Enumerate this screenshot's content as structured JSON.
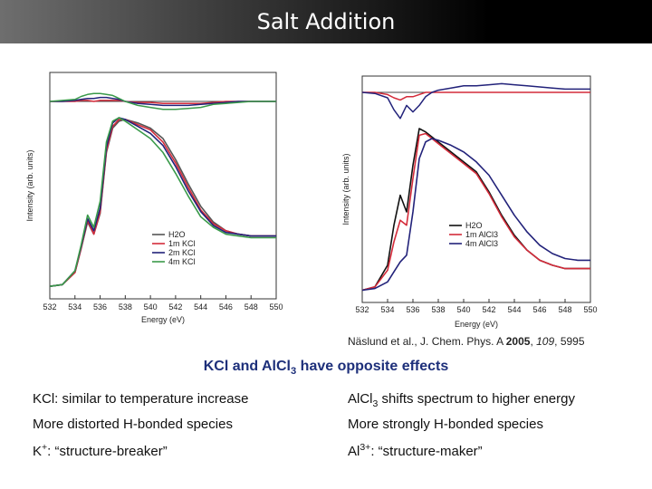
{
  "slide": {
    "title": "Salt Addition"
  },
  "citation": {
    "authors": "Näslund et al., J. Chem. Phys. A ",
    "year": "2005",
    "volume": "109",
    "page": "5995"
  },
  "headline": {
    "pre": "KCl and AlCl",
    "sub": "3",
    "post": " have opposite effects"
  },
  "comparison": {
    "left": [
      {
        "text": "KCl: similar to temperature increase"
      },
      {
        "text": "More distorted H-bonded species"
      },
      {
        "pre": "K",
        "sup": "+",
        "post": ": “structure-breaker”"
      }
    ],
    "right": [
      {
        "pre": "AlCl",
        "sub": "3",
        "post": " shifts spectrum to higher energy"
      },
      {
        "text": "More strongly H-bonded species"
      },
      {
        "pre": "Al",
        "sup": "3+",
        "post": ": “structure-maker”"
      }
    ]
  },
  "chart_data": [
    {
      "type": "line",
      "title": "",
      "xlabel": "Energy (eV)",
      "ylabel": "Intensity (arb. units)",
      "xlim": [
        532,
        550
      ],
      "xticks": [
        "532",
        "534",
        "536",
        "538",
        "540",
        "542",
        "544",
        "546",
        "548",
        "550"
      ],
      "legend": [
        "H2O",
        "1m KCl",
        "2m KCl",
        "4m KCl"
      ],
      "legend_position": "bottom-right",
      "colors": [
        "#555555",
        "#d42b3a",
        "#22227a",
        "#3a9a4a"
      ],
      "x": [
        532,
        533,
        534,
        534.5,
        535,
        535.5,
        536,
        536.5,
        537,
        537.5,
        538,
        539,
        540,
        541,
        542,
        543,
        544,
        545,
        546,
        547,
        548,
        549,
        550
      ],
      "series": [
        {
          "name": "H2O",
          "values": [
            0.03,
            0.04,
            0.11,
            0.25,
            0.4,
            0.33,
            0.45,
            0.8,
            0.94,
            0.98,
            0.99,
            0.97,
            0.94,
            0.88,
            0.76,
            0.62,
            0.49,
            0.4,
            0.35,
            0.33,
            0.32,
            0.32,
            0.32
          ]
        },
        {
          "name": "1m KCl",
          "values": [
            0.03,
            0.04,
            0.11,
            0.25,
            0.41,
            0.33,
            0.46,
            0.81,
            0.95,
            0.99,
            0.99,
            0.96,
            0.93,
            0.86,
            0.74,
            0.6,
            0.47,
            0.39,
            0.35,
            0.33,
            0.32,
            0.32,
            0.32
          ]
        },
        {
          "name": "2m KCl",
          "values": [
            0.03,
            0.04,
            0.12,
            0.26,
            0.42,
            0.35,
            0.48,
            0.83,
            0.97,
            1.0,
            0.99,
            0.95,
            0.91,
            0.84,
            0.72,
            0.58,
            0.46,
            0.38,
            0.34,
            0.33,
            0.32,
            0.32,
            0.32
          ]
        },
        {
          "name": "4m KCl",
          "values": [
            0.03,
            0.04,
            0.12,
            0.27,
            0.44,
            0.37,
            0.52,
            0.86,
            0.98,
            1.0,
            0.98,
            0.93,
            0.88,
            0.8,
            0.68,
            0.55,
            0.43,
            0.37,
            0.33,
            0.32,
            0.31,
            0.31,
            0.31
          ]
        }
      ],
      "difference_series": [
        {
          "name": "1m KCl",
          "values": [
            0.0,
            0.0,
            0.0,
            0.01,
            0.01,
            0.0,
            0.01,
            0.01,
            0.01,
            0.01,
            0.0,
            -0.01,
            -0.01,
            -0.02,
            -0.02,
            -0.02,
            -0.02,
            -0.01,
            0.0,
            0.0,
            0.0,
            0.0,
            0.0
          ]
        },
        {
          "name": "2m KCl",
          "values": [
            0.0,
            0.0,
            0.01,
            0.02,
            0.03,
            0.03,
            0.04,
            0.04,
            0.03,
            0.02,
            0.0,
            -0.02,
            -0.03,
            -0.04,
            -0.04,
            -0.04,
            -0.03,
            -0.02,
            -0.01,
            0.0,
            0.0,
            0.0,
            0.0
          ]
        },
        {
          "name": "4m KCl",
          "values": [
            0.0,
            0.01,
            0.02,
            0.05,
            0.07,
            0.08,
            0.08,
            0.07,
            0.06,
            0.03,
            0.0,
            -0.04,
            -0.06,
            -0.08,
            -0.08,
            -0.07,
            -0.06,
            -0.03,
            -0.02,
            -0.01,
            0.0,
            0.0,
            0.0
          ]
        }
      ]
    },
    {
      "type": "line",
      "title": "",
      "xlabel": "Energy (eV)",
      "ylabel": "Intensity (arb. units)",
      "xlim": [
        532,
        550
      ],
      "xticks": [
        "532",
        "534",
        "536",
        "538",
        "540",
        "542",
        "544",
        "546",
        "548",
        "550"
      ],
      "legend": [
        "H2O",
        "1m AlCl3",
        "4m AlCl3"
      ],
      "legend_position": "bottom-right",
      "colors": [
        "#111111",
        "#d42b3a",
        "#22227a"
      ],
      "x": [
        532,
        533,
        534,
        534.5,
        535,
        535.5,
        536,
        536.5,
        537,
        537.5,
        538,
        539,
        540,
        541,
        542,
        543,
        544,
        545,
        546,
        547,
        548,
        549,
        550
      ],
      "series": [
        {
          "name": "H2O",
          "values": [
            0.03,
            0.05,
            0.18,
            0.42,
            0.6,
            0.5,
            0.78,
            1.0,
            0.98,
            0.95,
            0.92,
            0.86,
            0.8,
            0.74,
            0.62,
            0.48,
            0.36,
            0.27,
            0.21,
            0.18,
            0.16,
            0.16,
            0.16
          ]
        },
        {
          "name": "1m AlCl3",
          "values": [
            0.03,
            0.05,
            0.15,
            0.32,
            0.45,
            0.42,
            0.7,
            0.96,
            0.97,
            0.94,
            0.91,
            0.85,
            0.79,
            0.73,
            0.61,
            0.47,
            0.35,
            0.27,
            0.21,
            0.18,
            0.16,
            0.16,
            0.16
          ]
        },
        {
          "name": "4m AlCl3",
          "values": [
            0.03,
            0.04,
            0.08,
            0.14,
            0.2,
            0.24,
            0.5,
            0.82,
            0.92,
            0.94,
            0.93,
            0.9,
            0.86,
            0.8,
            0.72,
            0.6,
            0.48,
            0.38,
            0.3,
            0.25,
            0.22,
            0.21,
            0.21
          ]
        }
      ],
      "difference_series": [
        {
          "name": "1m AlCl3",
          "values": [
            0.0,
            0.0,
            -0.02,
            -0.05,
            -0.07,
            -0.04,
            -0.04,
            -0.02,
            0.0,
            0.0,
            0.0,
            0.0,
            0.0,
            0.0,
            0.0,
            0.0,
            0.0,
            0.0,
            0.0,
            0.0,
            0.0,
            0.0,
            0.0
          ]
        },
        {
          "name": "4m AlCl3",
          "values": [
            0.0,
            -0.01,
            -0.05,
            -0.16,
            -0.24,
            -0.12,
            -0.18,
            -0.12,
            -0.04,
            0.0,
            0.02,
            0.04,
            0.06,
            0.06,
            0.07,
            0.08,
            0.07,
            0.06,
            0.05,
            0.04,
            0.03,
            0.03,
            0.03
          ]
        }
      ]
    }
  ]
}
